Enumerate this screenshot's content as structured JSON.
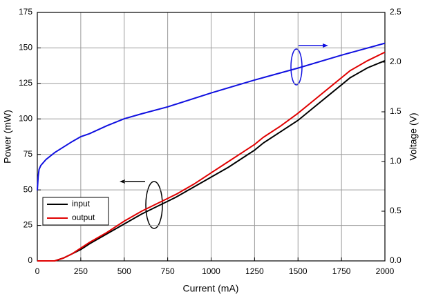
{
  "chart_data": {
    "type": "line",
    "x_label": "Current (mA)",
    "y_label": "Power (mW)",
    "y2_label": "Voltage (V)",
    "xlim": [
      0,
      2000
    ],
    "xticks": [
      0,
      250,
      500,
      750,
      1000,
      1250,
      1500,
      1750,
      2000
    ],
    "ylim": [
      0,
      175
    ],
    "yticks": [
      0,
      25,
      50,
      75,
      100,
      125,
      150,
      175
    ],
    "y2lim": [
      0,
      2.5
    ],
    "y2ticks": [
      {
        "value": 0,
        "label": "0.0"
      },
      0.5,
      {
        "value": 1,
        "label": "1.0"
      },
      1.5,
      {
        "value": 2,
        "label": "2.0"
      },
      2.5
    ],
    "grid": true,
    "legend": "lower left",
    "series": [
      {
        "name": "input",
        "color": "#000000",
        "x": [
          0,
          100,
          150,
          200,
          250,
          300,
          400,
          500,
          600,
          700,
          750,
          800,
          900,
          1000,
          1100,
          1200,
          1250,
          1300,
          1400,
          1500,
          1600,
          1700,
          1750,
          1800,
          1900,
          2000
        ],
        "values": [
          0,
          0,
          2,
          5,
          8,
          12,
          19,
          26,
          33,
          39,
          42,
          45,
          52,
          59,
          66,
          74,
          78,
          83,
          91,
          99,
          109,
          119,
          124,
          129,
          136,
          141
        ]
      },
      {
        "name": "output",
        "color": "#e00000",
        "x": [
          0,
          100,
          150,
          200,
          250,
          300,
          400,
          500,
          600,
          700,
          750,
          800,
          900,
          1000,
          1100,
          1200,
          1250,
          1300,
          1400,
          1500,
          1600,
          1700,
          1750,
          1800,
          1900,
          2000
        ],
        "values": [
          0,
          0,
          2,
          5,
          9,
          13,
          20,
          28,
          35,
          41,
          44,
          47,
          54,
          62,
          70,
          78,
          82,
          87,
          95,
          104,
          114,
          124,
          129,
          134,
          141,
          147
        ]
      },
      {
        "color": "#1010e0",
        "axis": "y2",
        "x": [
          0,
          5,
          10,
          20,
          50,
          100,
          200,
          250,
          300,
          400,
          500,
          600,
          750,
          1000,
          1250,
          1500,
          1750,
          2000
        ],
        "values": [
          0.71,
          0.85,
          0.92,
          0.96,
          1.02,
          1.09,
          1.2,
          1.25,
          1.28,
          1.36,
          1.43,
          1.48,
          1.55,
          1.69,
          1.82,
          1.94,
          2.07,
          2.19
        ]
      }
    ]
  }
}
